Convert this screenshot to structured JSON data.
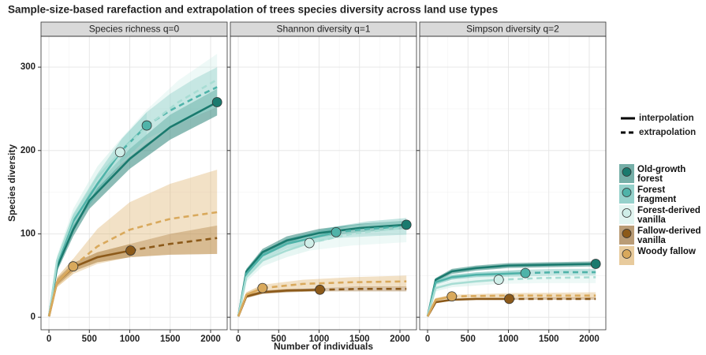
{
  "chart_data": {
    "type": "line",
    "title": "Sample-size-based rarefaction and extrapolation of trees species diversity across land use types",
    "x_label": "Number of individuals",
    "y_label": "Species diversity",
    "line_types": [
      "interpolation",
      "extrapolation"
    ],
    "xlim": [
      -98,
      2205
    ],
    "xticks": [
      0,
      500,
      1000,
      1500,
      2000
    ],
    "ylim": [
      -15,
      337
    ],
    "yticks": [
      0,
      100,
      200,
      300
    ],
    "grid": true,
    "groups": [
      {
        "name": "Old-growth forest",
        "color": "#1a7a6e"
      },
      {
        "name": "Forest fragment",
        "color": "#4fb3a9"
      },
      {
        "name": "Forest-derived vanilla",
        "color": "#cfeee8"
      },
      {
        "name": "Fallow-derived vanilla",
        "color": "#8c5a1a"
      },
      {
        "name": "Woody fallow",
        "color": "#d9a95c"
      }
    ],
    "facets": [
      {
        "title": "Species richness q=0",
        "series": [
          {
            "interpolation": {
              "x": [
                1,
                100,
                300,
                500,
                1000,
                1500,
                2080
              ],
              "values": [
                1,
                60,
                105,
                140,
                190,
                228,
                258
              ],
              "lower": [
                1,
                55,
                97,
                130,
                178,
                213,
                242
              ],
              "upper": [
                1,
                65,
                113,
                150,
                202,
                243,
                274
              ]
            }
          },
          {
            "interpolation": {
              "x": [
                1,
                100,
                300,
                600,
                900,
                1210
              ],
              "values": [
                1,
                65,
                115,
                160,
                200,
                230
              ],
              "lower": [
                1,
                59,
                106,
                148,
                186,
                214
              ],
              "upper": [
                1,
                71,
                124,
                172,
                214,
                246
              ]
            },
            "extrapolation": {
              "x": [
                1210,
                1500,
                1800,
                2080
              ],
              "values": [
                230,
                248,
                263,
                276
              ],
              "lower": [
                214,
                228,
                240,
                252
              ],
              "upper": [
                246,
                268,
                286,
                300
              ]
            }
          },
          {
            "interpolation": {
              "x": [
                1,
                100,
                300,
                600,
                880
              ],
              "values": [
                1,
                68,
                120,
                168,
                198
              ],
              "lower": [
                1,
                62,
                110,
                155,
                183
              ],
              "upper": [
                1,
                74,
                130,
                181,
                213
              ]
            },
            "extrapolation": {
              "x": [
                880,
                1200,
                1600,
                2080
              ],
              "values": [
                198,
                228,
                258,
                285
              ],
              "lower": [
                183,
                208,
                232,
                252
              ],
              "upper": [
                213,
                248,
                284,
                316
              ]
            }
          },
          {
            "interpolation": {
              "x": [
                1,
                100,
                300,
                600,
                1010
              ],
              "values": [
                1,
                42,
                60,
                72,
                80
              ],
              "lower": [
                1,
                38,
                55,
                66,
                72
              ],
              "upper": [
                1,
                46,
                65,
                78,
                88
              ]
            },
            "extrapolation": {
              "x": [
                1010,
                1500,
                2080
              ],
              "values": [
                80,
                88,
                95
              ],
              "lower": [
                72,
                75,
                76
              ],
              "upper": [
                88,
                100,
                110
              ]
            }
          },
          {
            "interpolation": {
              "x": [
                1,
                100,
                300
              ],
              "values": [
                1,
                42,
                61
              ],
              "lower": [
                1,
                36,
                52
              ],
              "upper": [
                1,
                48,
                70
              ]
            },
            "extrapolation": {
              "x": [
                300,
                600,
                1000,
                1500,
                2080
              ],
              "values": [
                61,
                85,
                105,
                118,
                126
              ],
              "lower": [
                52,
                64,
                72,
                75,
                76
              ],
              "upper": [
                70,
                106,
                138,
                160,
                177
              ]
            }
          }
        ]
      },
      {
        "title": "Shannon diversity q=1",
        "series": [
          {
            "interpolation": {
              "x": [
                1,
                100,
                300,
                600,
                1000,
                1500,
                2080
              ],
              "values": [
                1,
                55,
                78,
                92,
                101,
                107,
                111
              ],
              "lower": [
                1,
                52,
                74,
                87,
                96,
                102,
                106
              ],
              "upper": [
                1,
                58,
                82,
                97,
                106,
                112,
                116
              ]
            }
          },
          {
            "interpolation": {
              "x": [
                1,
                100,
                300,
                600,
                1210
              ],
              "values": [
                1,
                52,
                74,
                88,
                102
              ],
              "lower": [
                1,
                48,
                69,
                82,
                95
              ],
              "upper": [
                1,
                56,
                79,
                94,
                109
              ]
            },
            "extrapolation": {
              "x": [
                1210,
                1600,
                2080
              ],
              "values": [
                102,
                106,
                109
              ],
              "lower": [
                95,
                97,
                99
              ],
              "upper": [
                109,
                115,
                119
              ]
            }
          },
          {
            "interpolation": {
              "x": [
                1,
                100,
                300,
                600,
                880
              ],
              "values": [
                1,
                48,
                68,
                80,
                89
              ],
              "lower": [
                1,
                43,
                61,
                72,
                80
              ],
              "upper": [
                1,
                53,
                75,
                88,
                98
              ]
            },
            "extrapolation": {
              "x": [
                880,
                1400,
                2080
              ],
              "values": [
                89,
                100,
                108
              ],
              "lower": [
                80,
                86,
                90
              ],
              "upper": [
                98,
                110,
                117
              ]
            }
          },
          {
            "interpolation": {
              "x": [
                1,
                100,
                300,
                600,
                1010
              ],
              "values": [
                1,
                25,
                30,
                32,
                33
              ],
              "lower": [
                1,
                23,
                28,
                30,
                31
              ],
              "upper": [
                1,
                27,
                32,
                34,
                35
              ]
            },
            "extrapolation": {
              "x": [
                1010,
                1500,
                2080
              ],
              "values": [
                33,
                34,
                34
              ],
              "lower": [
                31,
                31,
                31
              ],
              "upper": [
                35,
                37,
                37
              ]
            }
          },
          {
            "interpolation": {
              "x": [
                1,
                100,
                300
              ],
              "values": [
                1,
                27,
                35
              ],
              "lower": [
                1,
                24,
                31
              ],
              "upper": [
                1,
                30,
                39
              ]
            },
            "extrapolation": {
              "x": [
                300,
                800,
                1400,
                2080
              ],
              "values": [
                35,
                40,
                42,
                43
              ],
              "lower": [
                31,
                35,
                36,
                36
              ],
              "upper": [
                39,
                45,
                48,
                50
              ]
            }
          }
        ]
      },
      {
        "title": "Simpson diversity q=2",
        "series": [
          {
            "interpolation": {
              "x": [
                1,
                100,
                300,
                600,
                1000,
                1500,
                2080
              ],
              "values": [
                1,
                45,
                55,
                59,
                62,
                63,
                64
              ],
              "lower": [
                1,
                43,
                52,
                56,
                59,
                60,
                61
              ],
              "upper": [
                1,
                47,
                58,
                62,
                65,
                66,
                67
              ]
            }
          },
          {
            "interpolation": {
              "x": [
                1,
                100,
                300,
                600,
                1210
              ],
              "values": [
                1,
                42,
                48,
                51,
                53
              ],
              "lower": [
                1,
                39,
                45,
                48,
                49
              ],
              "upper": [
                1,
                45,
                51,
                54,
                57
              ]
            },
            "extrapolation": {
              "x": [
                1210,
                1600,
                2080
              ],
              "values": [
                53,
                54,
                54
              ],
              "lower": [
                49,
                50,
                50
              ],
              "upper": [
                57,
                58,
                58
              ]
            }
          },
          {
            "interpolation": {
              "x": [
                1,
                100,
                300,
                600,
                880
              ],
              "values": [
                1,
                35,
                40,
                43,
                45
              ],
              "lower": [
                1,
                31,
                36,
                38,
                40
              ],
              "upper": [
                1,
                39,
                44,
                48,
                50
              ]
            },
            "extrapolation": {
              "x": [
                880,
                1400,
                2080
              ],
              "values": [
                45,
                47,
                48
              ],
              "lower": [
                40,
                41,
                41
              ],
              "upper": [
                50,
                53,
                55
              ]
            }
          },
          {
            "interpolation": {
              "x": [
                1,
                100,
                300,
                600,
                1010
              ],
              "values": [
                1,
                18,
                21,
                22,
                22
              ],
              "lower": [
                1,
                17,
                20,
                21,
                21
              ],
              "upper": [
                1,
                19,
                22,
                23,
                23
              ]
            },
            "extrapolation": {
              "x": [
                1010,
                1500,
                2080
              ],
              "values": [
                22,
                22,
                22
              ],
              "lower": [
                21,
                21,
                21
              ],
              "upper": [
                23,
                24,
                24
              ]
            }
          },
          {
            "interpolation": {
              "x": [
                1,
                100,
                300
              ],
              "values": [
                1,
                21,
                25
              ],
              "lower": [
                1,
                19,
                23
              ],
              "upper": [
                1,
                23,
                27
              ]
            },
            "extrapolation": {
              "x": [
                300,
                1000,
                2080
              ],
              "values": [
                25,
                26,
                26
              ],
              "lower": [
                23,
                23,
                23
              ],
              "upper": [
                27,
                29,
                30
              ]
            }
          }
        ]
      }
    ]
  }
}
